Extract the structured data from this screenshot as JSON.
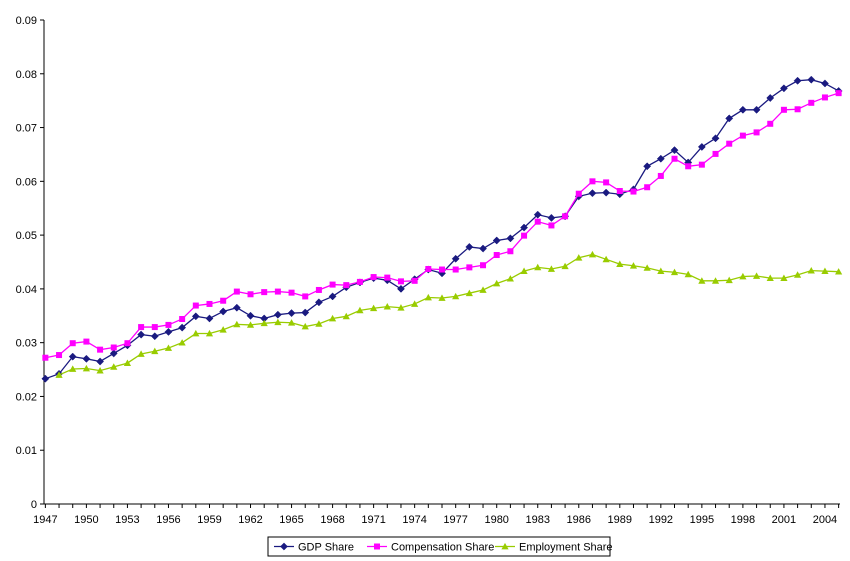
{
  "chart_data": {
    "type": "line",
    "title": "",
    "xlabel": "",
    "ylabel": "",
    "ylim": [
      0,
      0.09
    ],
    "xlim": [
      1947,
      2005
    ],
    "y_ticks": [
      "0",
      "0.01",
      "0.02",
      "0.03",
      "0.04",
      "0.05",
      "0.06",
      "0.07",
      "0.08",
      "0.09"
    ],
    "x_ticks": [
      "1947",
      "1950",
      "1953",
      "1956",
      "1959",
      "1962",
      "1965",
      "1968",
      "1971",
      "1974",
      "1977",
      "1980",
      "1983",
      "1986",
      "1989",
      "1992",
      "1995",
      "1998",
      "2001",
      "2004"
    ],
    "grid": false,
    "legend_position": "bottom",
    "x": [
      1947,
      1948,
      1949,
      1950,
      1951,
      1952,
      1953,
      1954,
      1955,
      1956,
      1957,
      1958,
      1959,
      1960,
      1961,
      1962,
      1963,
      1964,
      1965,
      1966,
      1967,
      1968,
      1969,
      1970,
      1971,
      1972,
      1973,
      1974,
      1975,
      1976,
      1977,
      1978,
      1979,
      1980,
      1981,
      1982,
      1983,
      1984,
      1985,
      1986,
      1987,
      1988,
      1989,
      1990,
      1991,
      1992,
      1993,
      1994,
      1995,
      1996,
      1997,
      1998,
      1999,
      2000,
      2001,
      2002,
      2003,
      2004,
      2005
    ],
    "series": [
      {
        "name": "GDP Share",
        "color": "#1a1a80",
        "marker": "diamond",
        "values": [
          0.0233,
          0.0242,
          0.0274,
          0.027,
          0.0265,
          0.028,
          0.0295,
          0.0315,
          0.0312,
          0.032,
          0.0328,
          0.0349,
          0.0345,
          0.0358,
          0.0365,
          0.035,
          0.0345,
          0.0352,
          0.0355,
          0.0356,
          0.0375,
          0.0386,
          0.0403,
          0.0412,
          0.042,
          0.0416,
          0.04,
          0.0418,
          0.0436,
          0.0429,
          0.0456,
          0.0478,
          0.0475,
          0.049,
          0.0494,
          0.0514,
          0.0538,
          0.0532,
          0.0535,
          0.0572,
          0.0578,
          0.0579,
          0.0576,
          0.0585,
          0.0628,
          0.0642,
          0.0658,
          0.0635,
          0.0664,
          0.068,
          0.0717,
          0.0733,
          0.0733,
          0.0755,
          0.0773,
          0.0787,
          0.0789,
          0.0782,
          0.0768
        ]
      },
      {
        "name": "Compensation Share",
        "color": "#ff00ff",
        "marker": "square",
        "values": [
          0.0272,
          0.0277,
          0.0299,
          0.0302,
          0.0287,
          0.0291,
          0.0299,
          0.0329,
          0.0329,
          0.0333,
          0.0344,
          0.0369,
          0.0372,
          0.0378,
          0.0395,
          0.039,
          0.0394,
          0.0395,
          0.0393,
          0.0386,
          0.0398,
          0.0408,
          0.0407,
          0.0413,
          0.0422,
          0.0421,
          0.0414,
          0.0415,
          0.0437,
          0.0436,
          0.0436,
          0.044,
          0.0444,
          0.0463,
          0.047,
          0.0499,
          0.0525,
          0.0518,
          0.0535,
          0.0577,
          0.06,
          0.0598,
          0.0582,
          0.0581,
          0.0589,
          0.061,
          0.0642,
          0.0628,
          0.0631,
          0.0651,
          0.067,
          0.0685,
          0.0691,
          0.0707,
          0.0733,
          0.0734,
          0.0746,
          0.0756,
          0.0764
        ]
      },
      {
        "name": "Employment Share",
        "color": "#99cc00",
        "marker": "triangle",
        "values": [
          null,
          0.024,
          0.0251,
          0.0252,
          0.0248,
          0.0255,
          0.0262,
          0.0279,
          0.0284,
          0.029,
          0.03,
          0.0317,
          0.0317,
          0.0324,
          0.0334,
          0.0333,
          0.0336,
          0.0338,
          0.0337,
          0.033,
          0.0335,
          0.0345,
          0.0349,
          0.036,
          0.0364,
          0.0367,
          0.0365,
          0.0372,
          0.0384,
          0.0383,
          0.0386,
          0.0392,
          0.0398,
          0.041,
          0.0419,
          0.0433,
          0.044,
          0.0437,
          0.0442,
          0.0458,
          0.0464,
          0.0455,
          0.0446,
          0.0443,
          0.0439,
          0.0433,
          0.0431,
          0.0427,
          0.0415,
          0.0415,
          0.0416,
          0.0423,
          0.0424,
          0.042,
          0.042,
          0.0426,
          0.0434,
          0.0433,
          0.0432
        ]
      }
    ]
  }
}
